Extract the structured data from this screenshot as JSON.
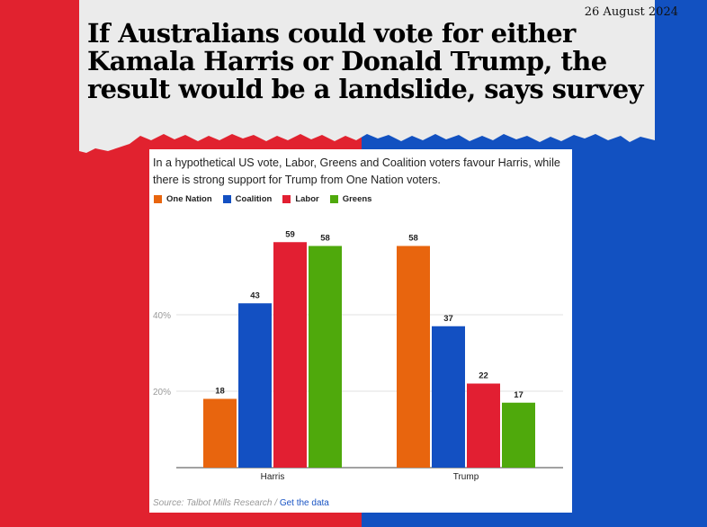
{
  "header": {
    "date": "26 August 2024",
    "headline": "If Australians could vote for either Kamala Harris or Donald Trump, the result would be a landslide, says survey"
  },
  "colors": {
    "background_left": "#e1222f",
    "background_right": "#1251c1",
    "banner": "#ebebeb"
  },
  "chart_data": {
    "type": "bar",
    "subtitle": "In a hypothetical US vote, Labor, Greens and Coalition voters favour Harris, while there is strong support for Trump from One Nation voters.",
    "categories": [
      "Harris",
      "Trump"
    ],
    "series": [
      {
        "name": "One Nation",
        "color": "#e8650e",
        "values": [
          18,
          58
        ]
      },
      {
        "name": "Coalition",
        "color": "#1350c2",
        "values": [
          43,
          37
        ]
      },
      {
        "name": "Labor",
        "color": "#e21f32",
        "values": [
          59,
          22
        ]
      },
      {
        "name": "Greens",
        "color": "#4fa90c",
        "values": [
          58,
          17
        ]
      }
    ],
    "yticks": [
      {
        "value": 20,
        "label": "20%"
      },
      {
        "value": 40,
        "label": "40%"
      }
    ],
    "ylim": [
      0,
      62
    ],
    "grid": true,
    "legend": "top-left",
    "source_label": "Source: Talbot Mills Research / ",
    "source_link": "Get the data"
  }
}
